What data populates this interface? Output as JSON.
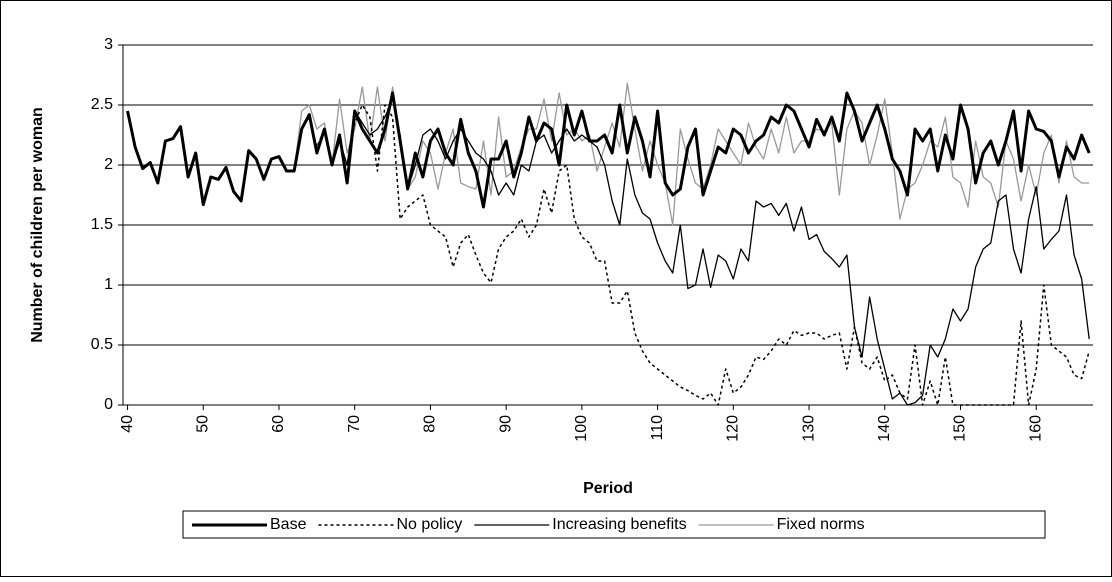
{
  "chart_data": {
    "type": "line",
    "x_label": "Period",
    "y_label": "Number of children per woman",
    "x": [
      40,
      41,
      42,
      43,
      44,
      45,
      46,
      47,
      48,
      49,
      50,
      51,
      52,
      53,
      54,
      55,
      56,
      57,
      58,
      59,
      60,
      61,
      62,
      63,
      64,
      65,
      66,
      67,
      68,
      69,
      70,
      71,
      72,
      73,
      74,
      75,
      76,
      77,
      78,
      79,
      80,
      81,
      82,
      83,
      84,
      85,
      86,
      87,
      88,
      89,
      90,
      91,
      92,
      93,
      94,
      95,
      96,
      97,
      98,
      99,
      100,
      101,
      102,
      103,
      104,
      105,
      106,
      107,
      108,
      109,
      110,
      111,
      112,
      113,
      114,
      115,
      116,
      117,
      118,
      119,
      120,
      121,
      122,
      123,
      124,
      125,
      126,
      127,
      128,
      129,
      130,
      131,
      132,
      133,
      134,
      135,
      136,
      137,
      138,
      139,
      140,
      141,
      142,
      143,
      144,
      145,
      146,
      147,
      148,
      149,
      150,
      151,
      152,
      153,
      154,
      155,
      156,
      157,
      158,
      159,
      160,
      161,
      162,
      163,
      164,
      165,
      166,
      167
    ],
    "xlim": [
      39.4,
      167.5
    ],
    "xticks": [
      40,
      50,
      60,
      70,
      80,
      90,
      100,
      110,
      120,
      130,
      140,
      150,
      160
    ],
    "ylim": [
      0,
      3
    ],
    "yticks": [
      0,
      0.5,
      1,
      1.5,
      2,
      2.5,
      3
    ],
    "grid": true,
    "legend": "bottom",
    "series": [
      {
        "name": "Base",
        "color": "#000000",
        "style": "bold",
        "values": [
          2.45,
          2.15,
          1.97,
          2.02,
          1.85,
          2.2,
          2.22,
          2.32,
          1.9,
          2.1,
          1.67,
          1.9,
          1.88,
          1.98,
          1.78,
          1.7,
          2.12,
          2.05,
          1.88,
          2.05,
          2.07,
          1.95,
          1.95,
          2.3,
          2.42,
          2.1,
          2.3,
          2.0,
          2.25,
          1.85,
          2.45,
          2.3,
          2.2,
          2.1,
          2.3,
          2.6,
          2.2,
          1.8,
          2.1,
          1.9,
          2.2,
          2.3,
          2.1,
          2.0,
          2.38,
          2.1,
          1.95,
          1.65,
          2.05,
          2.05,
          2.2,
          1.9,
          2.1,
          2.4,
          2.2,
          2.35,
          2.3,
          2.0,
          2.5,
          2.25,
          2.45,
          2.2,
          2.2,
          2.25,
          2.1,
          2.5,
          2.1,
          2.4,
          2.2,
          1.9,
          2.45,
          1.85,
          1.75,
          1.8,
          2.15,
          2.3,
          1.75,
          1.95,
          2.15,
          2.1,
          2.3,
          2.25,
          2.1,
          2.2,
          2.25,
          2.4,
          2.35,
          2.5,
          2.45,
          2.3,
          2.15,
          2.38,
          2.25,
          2.4,
          2.2,
          2.6,
          2.45,
          2.2,
          2.35,
          2.5,
          2.3,
          2.05,
          1.95,
          1.75,
          2.3,
          2.2,
          2.3,
          1.95,
          2.25,
          2.05,
          2.5,
          2.3,
          1.85,
          2.1,
          2.2,
          2.0,
          2.2,
          2.45,
          1.95,
          2.45,
          2.3,
          2.28,
          2.2,
          1.9,
          2.15,
          2.05,
          2.25,
          2.1
        ]
      },
      {
        "name": "No policy",
        "color": "#000000",
        "style": "dotted",
        "values": [
          2.45,
          2.15,
          1.97,
          2.02,
          1.85,
          2.2,
          2.22,
          2.32,
          1.9,
          2.1,
          1.67,
          1.9,
          1.88,
          1.98,
          1.78,
          1.7,
          2.12,
          2.05,
          1.88,
          2.05,
          2.07,
          1.95,
          1.95,
          2.3,
          2.4,
          2.15,
          2.3,
          2.0,
          2.2,
          2.0,
          2.35,
          2.5,
          2.4,
          1.95,
          2.5,
          2.4,
          1.55,
          1.65,
          1.7,
          1.75,
          1.5,
          1.45,
          1.4,
          1.15,
          1.35,
          1.42,
          1.25,
          1.1,
          1.02,
          1.3,
          1.4,
          1.45,
          1.55,
          1.4,
          1.5,
          1.8,
          1.6,
          1.95,
          2.0,
          1.55,
          1.4,
          1.35,
          1.2,
          1.2,
          0.85,
          0.85,
          0.95,
          0.6,
          0.45,
          0.35,
          0.3,
          0.25,
          0.2,
          0.15,
          0.12,
          0.08,
          0.05,
          0.1,
          0.0,
          0.3,
          0.1,
          0.15,
          0.25,
          0.4,
          0.38,
          0.45,
          0.55,
          0.5,
          0.62,
          0.58,
          0.6,
          0.6,
          0.55,
          0.58,
          0.6,
          0.3,
          0.65,
          0.35,
          0.3,
          0.4,
          0.2,
          0.25,
          0.1,
          0.05,
          0.5,
          0.0,
          0.2,
          0.0,
          0.4,
          0.0,
          0,
          0,
          0,
          0,
          0,
          0,
          0,
          0,
          0.7,
          0,
          0.3,
          1.0,
          0.5,
          0.45,
          0.4,
          0.25,
          0.22,
          0.45
        ]
      },
      {
        "name": "Increasing benefits",
        "color": "#000000",
        "style": "thin",
        "values": [
          2.45,
          2.15,
          1.97,
          2.02,
          1.85,
          2.2,
          2.22,
          2.32,
          1.9,
          2.1,
          1.67,
          1.9,
          1.88,
          1.98,
          1.78,
          1.7,
          2.12,
          2.05,
          1.88,
          2.05,
          2.07,
          1.95,
          1.95,
          2.3,
          2.4,
          2.1,
          2.28,
          2.0,
          2.2,
          2.0,
          2.45,
          2.35,
          2.25,
          2.3,
          2.4,
          2.55,
          2.25,
          1.8,
          2.0,
          2.25,
          2.3,
          2.2,
          2.05,
          2.2,
          2.3,
          2.2,
          2.1,
          2.05,
          1.95,
          1.75,
          1.85,
          1.75,
          2.0,
          1.95,
          2.2,
          2.25,
          2.1,
          2.2,
          2.3,
          2.2,
          2.25,
          2.2,
          2.15,
          2.0,
          1.7,
          1.5,
          2.05,
          1.75,
          1.6,
          1.55,
          1.35,
          1.2,
          1.1,
          1.5,
          0.97,
          1.0,
          1.3,
          0.98,
          1.25,
          1.2,
          1.05,
          1.3,
          1.2,
          1.7,
          1.65,
          1.68,
          1.58,
          1.68,
          1.45,
          1.65,
          1.38,
          1.42,
          1.28,
          1.22,
          1.15,
          1.25,
          0.65,
          0.4,
          0.9,
          0.55,
          0.3,
          0.05,
          0.1,
          0.0,
          0.02,
          0.08,
          0.5,
          0.4,
          0.55,
          0.8,
          0.7,
          0.8,
          1.15,
          1.3,
          1.35,
          1.7,
          1.75,
          1.3,
          1.1,
          1.55,
          1.82,
          1.3,
          1.38,
          1.45,
          1.75,
          1.25,
          1.05,
          0.55
        ]
      },
      {
        "name": "Fixed norms",
        "color": "#999999",
        "style": "thin",
        "values": [
          2.45,
          2.15,
          1.97,
          2.02,
          1.85,
          2.2,
          2.22,
          2.32,
          1.9,
          2.1,
          1.67,
          1.9,
          1.88,
          1.98,
          1.78,
          1.7,
          2.12,
          2.05,
          1.88,
          2.05,
          2.07,
          1.95,
          1.95,
          2.45,
          2.5,
          2.3,
          2.35,
          2.0,
          2.55,
          2.1,
          2.3,
          2.65,
          2.2,
          2.65,
          2.2,
          2.65,
          2.2,
          1.8,
          1.9,
          2.2,
          2.1,
          1.8,
          2.1,
          2.3,
          1.85,
          1.82,
          1.8,
          2.2,
          1.75,
          2.4,
          1.9,
          1.95,
          2.15,
          2.3,
          2.3,
          2.55,
          2.2,
          2.6,
          2.25,
          2.3,
          2.2,
          2.25,
          1.95,
          2.15,
          2.35,
          2.15,
          2.68,
          2.3,
          1.95,
          2.2,
          2.0,
          1.85,
          1.5,
          2.3,
          2.05,
          1.85,
          1.8,
          2.0,
          2.3,
          2.2,
          2.1,
          2.0,
          2.35,
          2.15,
          2.05,
          2.3,
          2.1,
          2.4,
          2.1,
          2.2,
          2.2,
          2.3,
          2.28,
          2.35,
          1.75,
          2.3,
          2.45,
          2.35,
          2.0,
          2.25,
          2.55,
          2.1,
          1.55,
          1.8,
          1.85,
          2.0,
          2.2,
          2.15,
          2.4,
          1.9,
          1.85,
          1.65,
          2.2,
          1.9,
          1.85,
          1.65,
          2.2,
          2.05,
          1.7,
          2.0,
          1.75,
          2.1,
          2.25,
          1.85,
          2.2,
          1.9,
          1.85,
          1.85
        ]
      }
    ]
  }
}
